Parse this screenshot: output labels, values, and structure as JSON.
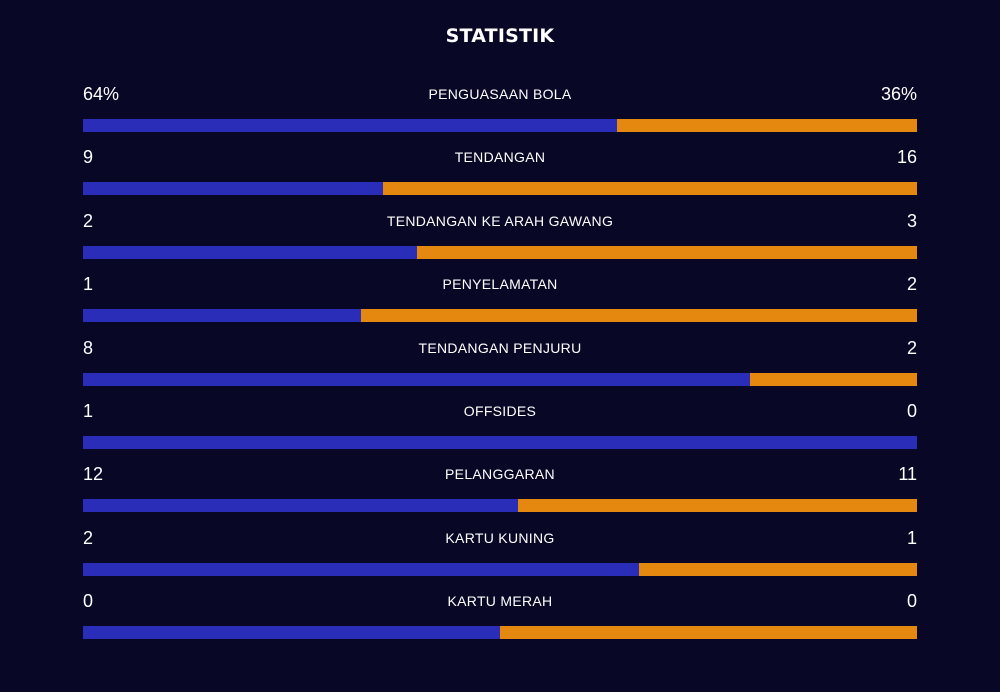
{
  "header": {
    "title": "STATISTIK"
  },
  "colors": {
    "home": "#2a2db8",
    "away": "#e5880f",
    "background": "#080826"
  },
  "stats": [
    {
      "label": "PENGUASAAN BOLA",
      "home": "64%",
      "away": "36%",
      "home_share": 0.64
    },
    {
      "label": "TENDANGAN",
      "home": "9",
      "away": "16",
      "home_share": 0.36
    },
    {
      "label": "TENDANGAN KE ARAH GAWANG",
      "home": "2",
      "away": "3",
      "home_share": 0.4
    },
    {
      "label": "PENYELAMATAN",
      "home": "1",
      "away": "2",
      "home_share": 0.333
    },
    {
      "label": "TENDANGAN PENJURU",
      "home": "8",
      "away": "2",
      "home_share": 0.8
    },
    {
      "label": "OFFSIDES",
      "home": "1",
      "away": "0",
      "home_share": 1.0
    },
    {
      "label": "PELANGGARAN",
      "home": "12",
      "away": "11",
      "home_share": 0.522
    },
    {
      "label": "KARTU KUNING",
      "home": "2",
      "away": "1",
      "home_share": 0.667
    },
    {
      "label": "KARTU MERAH",
      "home": "0",
      "away": "0",
      "home_share": 0.5
    }
  ]
}
